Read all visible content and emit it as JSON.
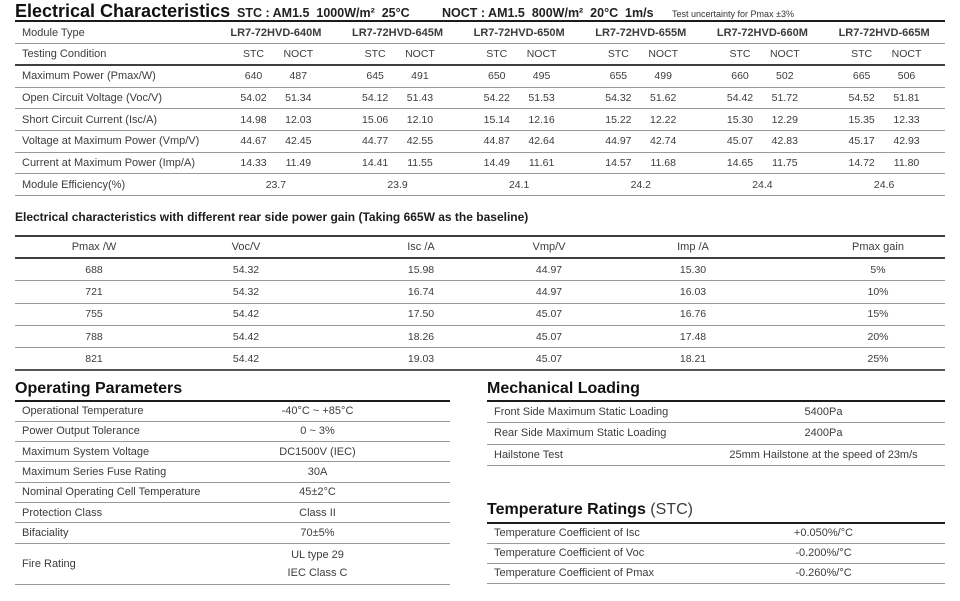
{
  "header": {
    "title": "Electrical Characteristics",
    "stc_condition": "STC : AM1.5  1000W/m²  25°C",
    "noct_condition": "NOCT : AM1.5  800W/m²  20°C  1m/s",
    "uncertainty_note": "Test uncertainty for Pmax ±3%"
  },
  "colors": {
    "rule_strong": "#1c1c1c",
    "rule_medium": "#3f3f3f",
    "rule_light": "#999999",
    "text": "#3c3c3c"
  },
  "main_table": {
    "module_type_label": "Module Type",
    "testing_condition_label": "Testing Condition",
    "modules": [
      "LR7-72HVD-640M",
      "LR7-72HVD-645M",
      "LR7-72HVD-650M",
      "LR7-72HVD-655M",
      "LR7-72HVD-660M",
      "LR7-72HVD-665M"
    ],
    "conditions": [
      "STC",
      "NOCT"
    ],
    "rows": [
      {
        "label": "Maximum Power (Pmax/W)",
        "values": [
          "640",
          "487",
          "645",
          "491",
          "650",
          "495",
          "655",
          "499",
          "660",
          "502",
          "665",
          "506"
        ]
      },
      {
        "label": "Open Circuit Voltage (Voc/V)",
        "values": [
          "54.02",
          "51.34",
          "54.12",
          "51.43",
          "54.22",
          "51.53",
          "54.32",
          "51.62",
          "54.42",
          "51.72",
          "54.52",
          "51.81"
        ]
      },
      {
        "label": "Short Circuit Current (Isc/A)",
        "values": [
          "14.98",
          "12.03",
          "15.06",
          "12.10",
          "15.14",
          "12.16",
          "15.22",
          "12.22",
          "15.30",
          "12.29",
          "15.35",
          "12.33"
        ]
      },
      {
        "label": "Voltage at Maximum Power (Vmp/V)",
        "values": [
          "44.67",
          "42.45",
          "44.77",
          "42.55",
          "44.87",
          "42.64",
          "44.97",
          "42.74",
          "45.07",
          "42.83",
          "45.17",
          "42.93"
        ]
      },
      {
        "label": "Current at Maximum Power (Imp/A)",
        "values": [
          "14.33",
          "11.49",
          "14.41",
          "11.55",
          "14.49",
          "11.61",
          "14.57",
          "11.68",
          "14.65",
          "11.75",
          "14.72",
          "11.80"
        ]
      }
    ],
    "efficiency_row": {
      "label": "Module Efficiency(%)",
      "values": [
        "23.7",
        "23.9",
        "24.1",
        "24.2",
        "24.4",
        "24.6"
      ]
    }
  },
  "rear_gain_table": {
    "title": "Electrical characteristics with different rear side power gain (Taking 665W as the baseline)",
    "headers": [
      "Pmax /W",
      "Voc/V",
      "Isc /A",
      "Vmp/V",
      "Imp /A",
      "Pmax gain"
    ],
    "rows": [
      [
        "688",
        "54.32",
        "15.98",
        "44.97",
        "15.30",
        "5%"
      ],
      [
        "721",
        "54.32",
        "16.74",
        "44.97",
        "16.03",
        "10%"
      ],
      [
        "755",
        "54.42",
        "17.50",
        "45.07",
        "16.76",
        "15%"
      ],
      [
        "788",
        "54.42",
        "18.26",
        "45.07",
        "17.48",
        "20%"
      ],
      [
        "821",
        "54.42",
        "19.03",
        "45.07",
        "18.21",
        "25%"
      ]
    ]
  },
  "operating_parameters": {
    "title": "Operating Parameters",
    "rows": [
      {
        "label": "Operational Temperature",
        "value": "-40°C ~ +85°C"
      },
      {
        "label": "Power Output Tolerance",
        "value": "0 ~ 3%"
      },
      {
        "label": "Maximum System Voltage",
        "value": "DC1500V (IEC)"
      },
      {
        "label": "Maximum Series Fuse Rating",
        "value": "30A"
      },
      {
        "label": "Nominal Operating Cell Temperature",
        "value": "45±2°C"
      },
      {
        "label": "Protection Class",
        "value": "Class II"
      },
      {
        "label": "Bifaciality",
        "value": "70±5%"
      },
      {
        "label": "Fire Rating",
        "value_lines": [
          "UL type 29",
          "IEC Class C"
        ]
      }
    ]
  },
  "mechanical_loading": {
    "title": "Mechanical Loading",
    "rows": [
      {
        "label": "Front Side Maximum Static Loading",
        "value": "5400Pa"
      },
      {
        "label": "Rear Side Maximum Static Loading",
        "value": "2400Pa"
      },
      {
        "label": "Hailstone Test",
        "value": "25mm Hailstone at the speed of 23m/s"
      }
    ]
  },
  "temperature_ratings": {
    "title": "Temperature Ratings",
    "title_suffix": " (STC)",
    "rows": [
      {
        "label": "Temperature Coefficient of Isc",
        "value": "+0.050%/°C"
      },
      {
        "label": "Temperature Coefficient of Voc",
        "value": "-0.200%/°C"
      },
      {
        "label": "Temperature Coefficient of Pmax",
        "value": "-0.260%/°C"
      }
    ]
  }
}
